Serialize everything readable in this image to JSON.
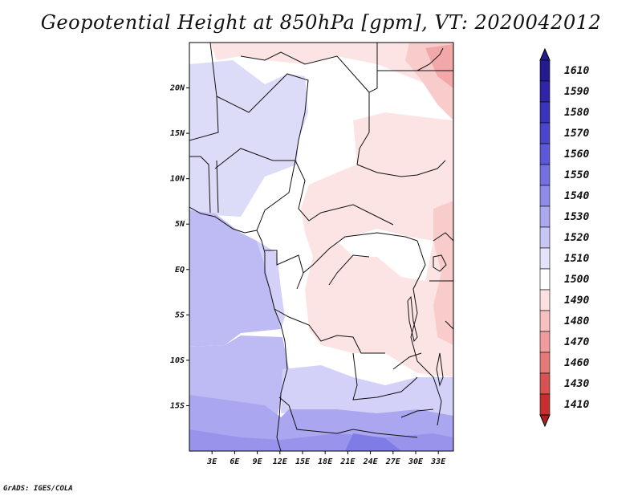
{
  "title": "Geopotential Height at 850hPa [gpm], VT: 2020042012",
  "credit": "GrADS: IGES/COLA",
  "map": {
    "lon_range": [
      0,
      35
    ],
    "lat_range": [
      -20,
      25
    ],
    "x_ticks": [
      {
        "value": 3,
        "label": "3E"
      },
      {
        "value": 6,
        "label": "6E"
      },
      {
        "value": 9,
        "label": "9E"
      },
      {
        "value": 12,
        "label": "12E"
      },
      {
        "value": 15,
        "label": "15E"
      },
      {
        "value": 18,
        "label": "18E"
      },
      {
        "value": 21,
        "label": "21E"
      },
      {
        "value": 24,
        "label": "24E"
      },
      {
        "value": 27,
        "label": "27E"
      },
      {
        "value": 30,
        "label": "30E"
      },
      {
        "value": 33,
        "label": "33E"
      }
    ],
    "y_ticks": [
      {
        "value": 20,
        "label": "20N"
      },
      {
        "value": 15,
        "label": "15N"
      },
      {
        "value": 10,
        "label": "10N"
      },
      {
        "value": 5,
        "label": "5N"
      },
      {
        "value": 0,
        "label": "EQ"
      },
      {
        "value": -5,
        "label": "5S"
      },
      {
        "value": -10,
        "label": "10S"
      },
      {
        "value": -15,
        "label": "15S"
      }
    ]
  },
  "colorbar": {
    "levels": [
      {
        "label": "1610",
        "color": "#231b8e"
      },
      {
        "label": "1590",
        "color": "#2e26a6"
      },
      {
        "label": "1580",
        "color": "#3a33bb"
      },
      {
        "label": "1570",
        "color": "#4a45cc"
      },
      {
        "label": "1560",
        "color": "#5c58d8"
      },
      {
        "label": "1550",
        "color": "#7470e2"
      },
      {
        "label": "1540",
        "color": "#8f8bea"
      },
      {
        "label": "1530",
        "color": "#aba8f0"
      },
      {
        "label": "1520",
        "color": "#c8c6f5"
      },
      {
        "label": "1510",
        "color": "#e4e3fb"
      },
      {
        "label": "1500",
        "color": "#ffffff"
      },
      {
        "label": "1490",
        "color": "#fde0e0"
      },
      {
        "label": "1480",
        "color": "#f8c0c0"
      },
      {
        "label": "1470",
        "color": "#f09c9c"
      },
      {
        "label": "1460",
        "color": "#e67878"
      },
      {
        "label": "1430",
        "color": "#d85252"
      },
      {
        "label": "1410",
        "color": "#c83030"
      }
    ],
    "bottom_color": "#a82020"
  }
}
